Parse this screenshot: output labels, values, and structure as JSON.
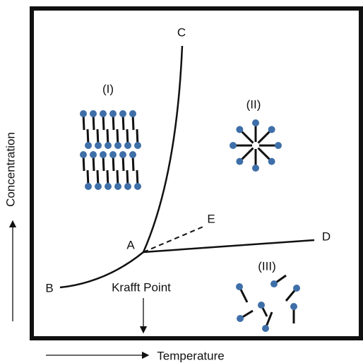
{
  "points": {
    "A": "A",
    "B": "B",
    "C": "C",
    "D": "D",
    "E": "E"
  },
  "regions": {
    "I": "(I)",
    "II": "(II)",
    "III": "(III)"
  },
  "krafft_point": "Krafft Point",
  "axes": {
    "y_label": "Concentration",
    "x_label": "Temperature"
  }
}
